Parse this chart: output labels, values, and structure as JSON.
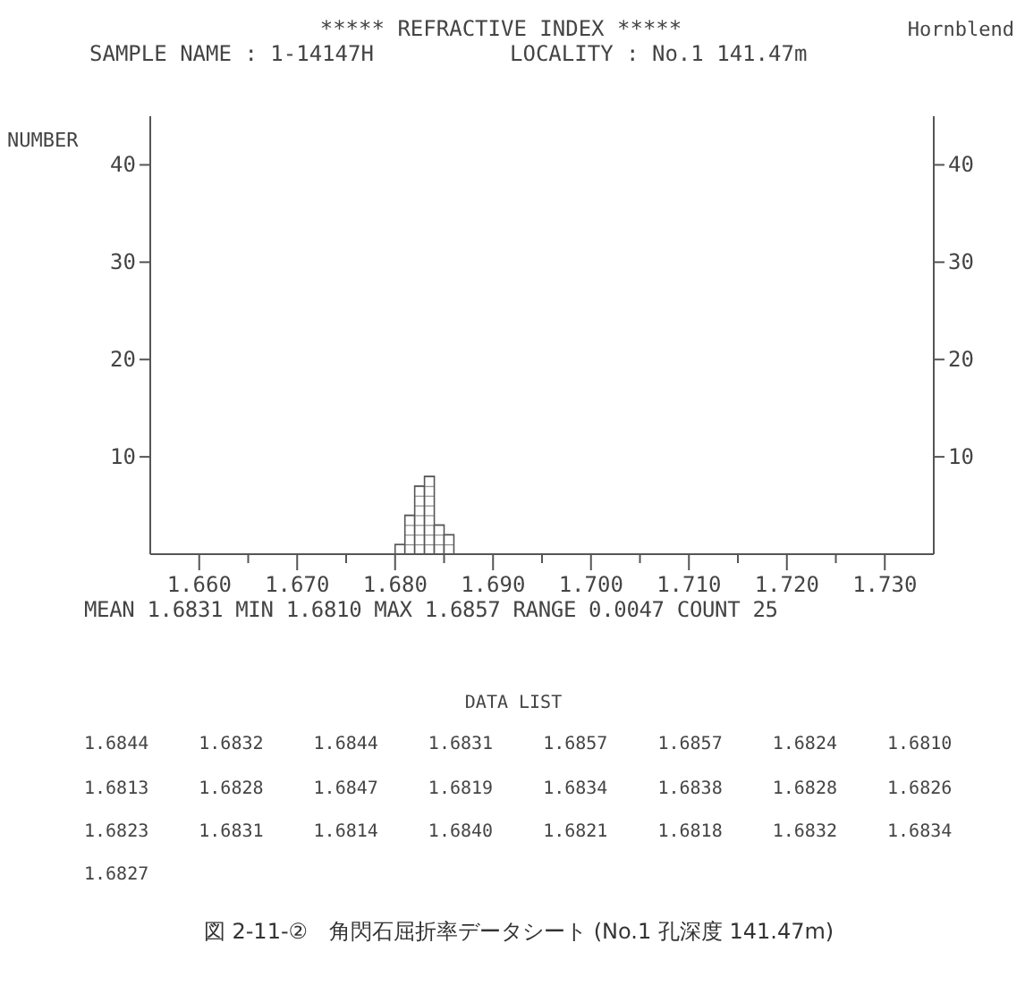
{
  "chart_data": {
    "type": "histogram",
    "title": "***** REFRACTIVE INDEX *****",
    "subtitle": "SAMPLE NAME : 1-14147H",
    "ylabel": "NUMBER",
    "bins": [
      1.68,
      1.681,
      1.682,
      1.683,
      1.684,
      1.685,
      1.686
    ],
    "values": [
      1,
      4,
      7,
      8,
      3,
      2
    ],
    "xlim": [
      1.655,
      1.735
    ],
    "xticks": [
      {
        "value": 1.66,
        "label": "1.660"
      },
      {
        "value": 1.665,
        "label": null
      },
      {
        "value": 1.67,
        "label": "1.670"
      },
      {
        "value": 1.675,
        "label": null
      },
      {
        "value": 1.68,
        "label": "1.680"
      },
      {
        "value": 1.685,
        "label": null
      },
      {
        "value": 1.69,
        "label": "1.690"
      },
      {
        "value": 1.695,
        "label": null
      },
      {
        "value": 1.7,
        "label": "1.700"
      },
      {
        "value": 1.705,
        "label": null
      },
      {
        "value": 1.71,
        "label": "1.710"
      },
      {
        "value": 1.715,
        "label": null
      },
      {
        "value": 1.72,
        "label": "1.720"
      },
      {
        "value": 1.725,
        "label": null
      },
      {
        "value": 1.73,
        "label": "1.730"
      }
    ],
    "ylim": [
      0,
      45
    ],
    "yticks": [
      10,
      20,
      30,
      40
    ],
    "y2lim": [
      0,
      45
    ],
    "y2ticks": [
      10,
      20,
      30,
      40
    ],
    "grid": false,
    "annotations": [
      "LOCALITY : No.1 141.47m",
      "Hornblend",
      "MEAN 1.6831 MIN 1.6810 MAX 1.6857 RANGE 0.0047 COUNT 25",
      "DATA LIST",
      "1.6844 1.6832 1.6844 1.6831 1.6857 1.6857 1.6824 1.6810",
      "1.6813 1.6828 1.6847 1.6819 1.6834 1.6838 1.6828 1.6826",
      "1.6823 1.6831 1.6814 1.6840 1.6821 1.6818 1.6832 1.6834",
      "1.6827",
      "図 2-11-②　角閃石屈折率データシート (No.1 孔深度 141.47m)"
    ]
  }
}
